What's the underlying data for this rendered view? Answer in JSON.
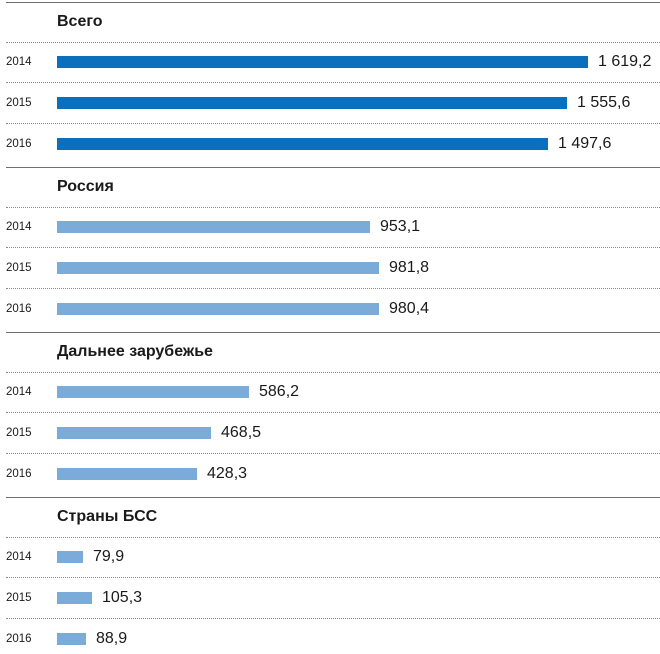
{
  "colors": {
    "total": "#0a6fbd",
    "part": "#7aabd9",
    "text": "#1a1a1a"
  },
  "chart_data": {
    "type": "bar",
    "orientation": "horizontal",
    "categories": [
      "2014",
      "2015",
      "2016"
    ],
    "groups": [
      {
        "title": "Всего",
        "values": [
          1619.2,
          1555.6,
          1497.6
        ],
        "labels": [
          "1 619,2",
          "1 555,6",
          "1 497,6"
        ]
      },
      {
        "title": "Россия",
        "values": [
          953.1,
          981.8,
          980.4
        ],
        "labels": [
          "953,1",
          "981,8",
          "980,4"
        ]
      },
      {
        "title": "Дальнее зарубежье",
        "values": [
          586.2,
          468.5,
          428.3
        ],
        "labels": [
          "586,2",
          "468,5",
          "428,3"
        ]
      },
      {
        "title": "Страны БСС",
        "values": [
          79.9,
          105.3,
          88.9
        ],
        "labels": [
          "79,9",
          "105,3",
          "88,9"
        ]
      }
    ]
  }
}
